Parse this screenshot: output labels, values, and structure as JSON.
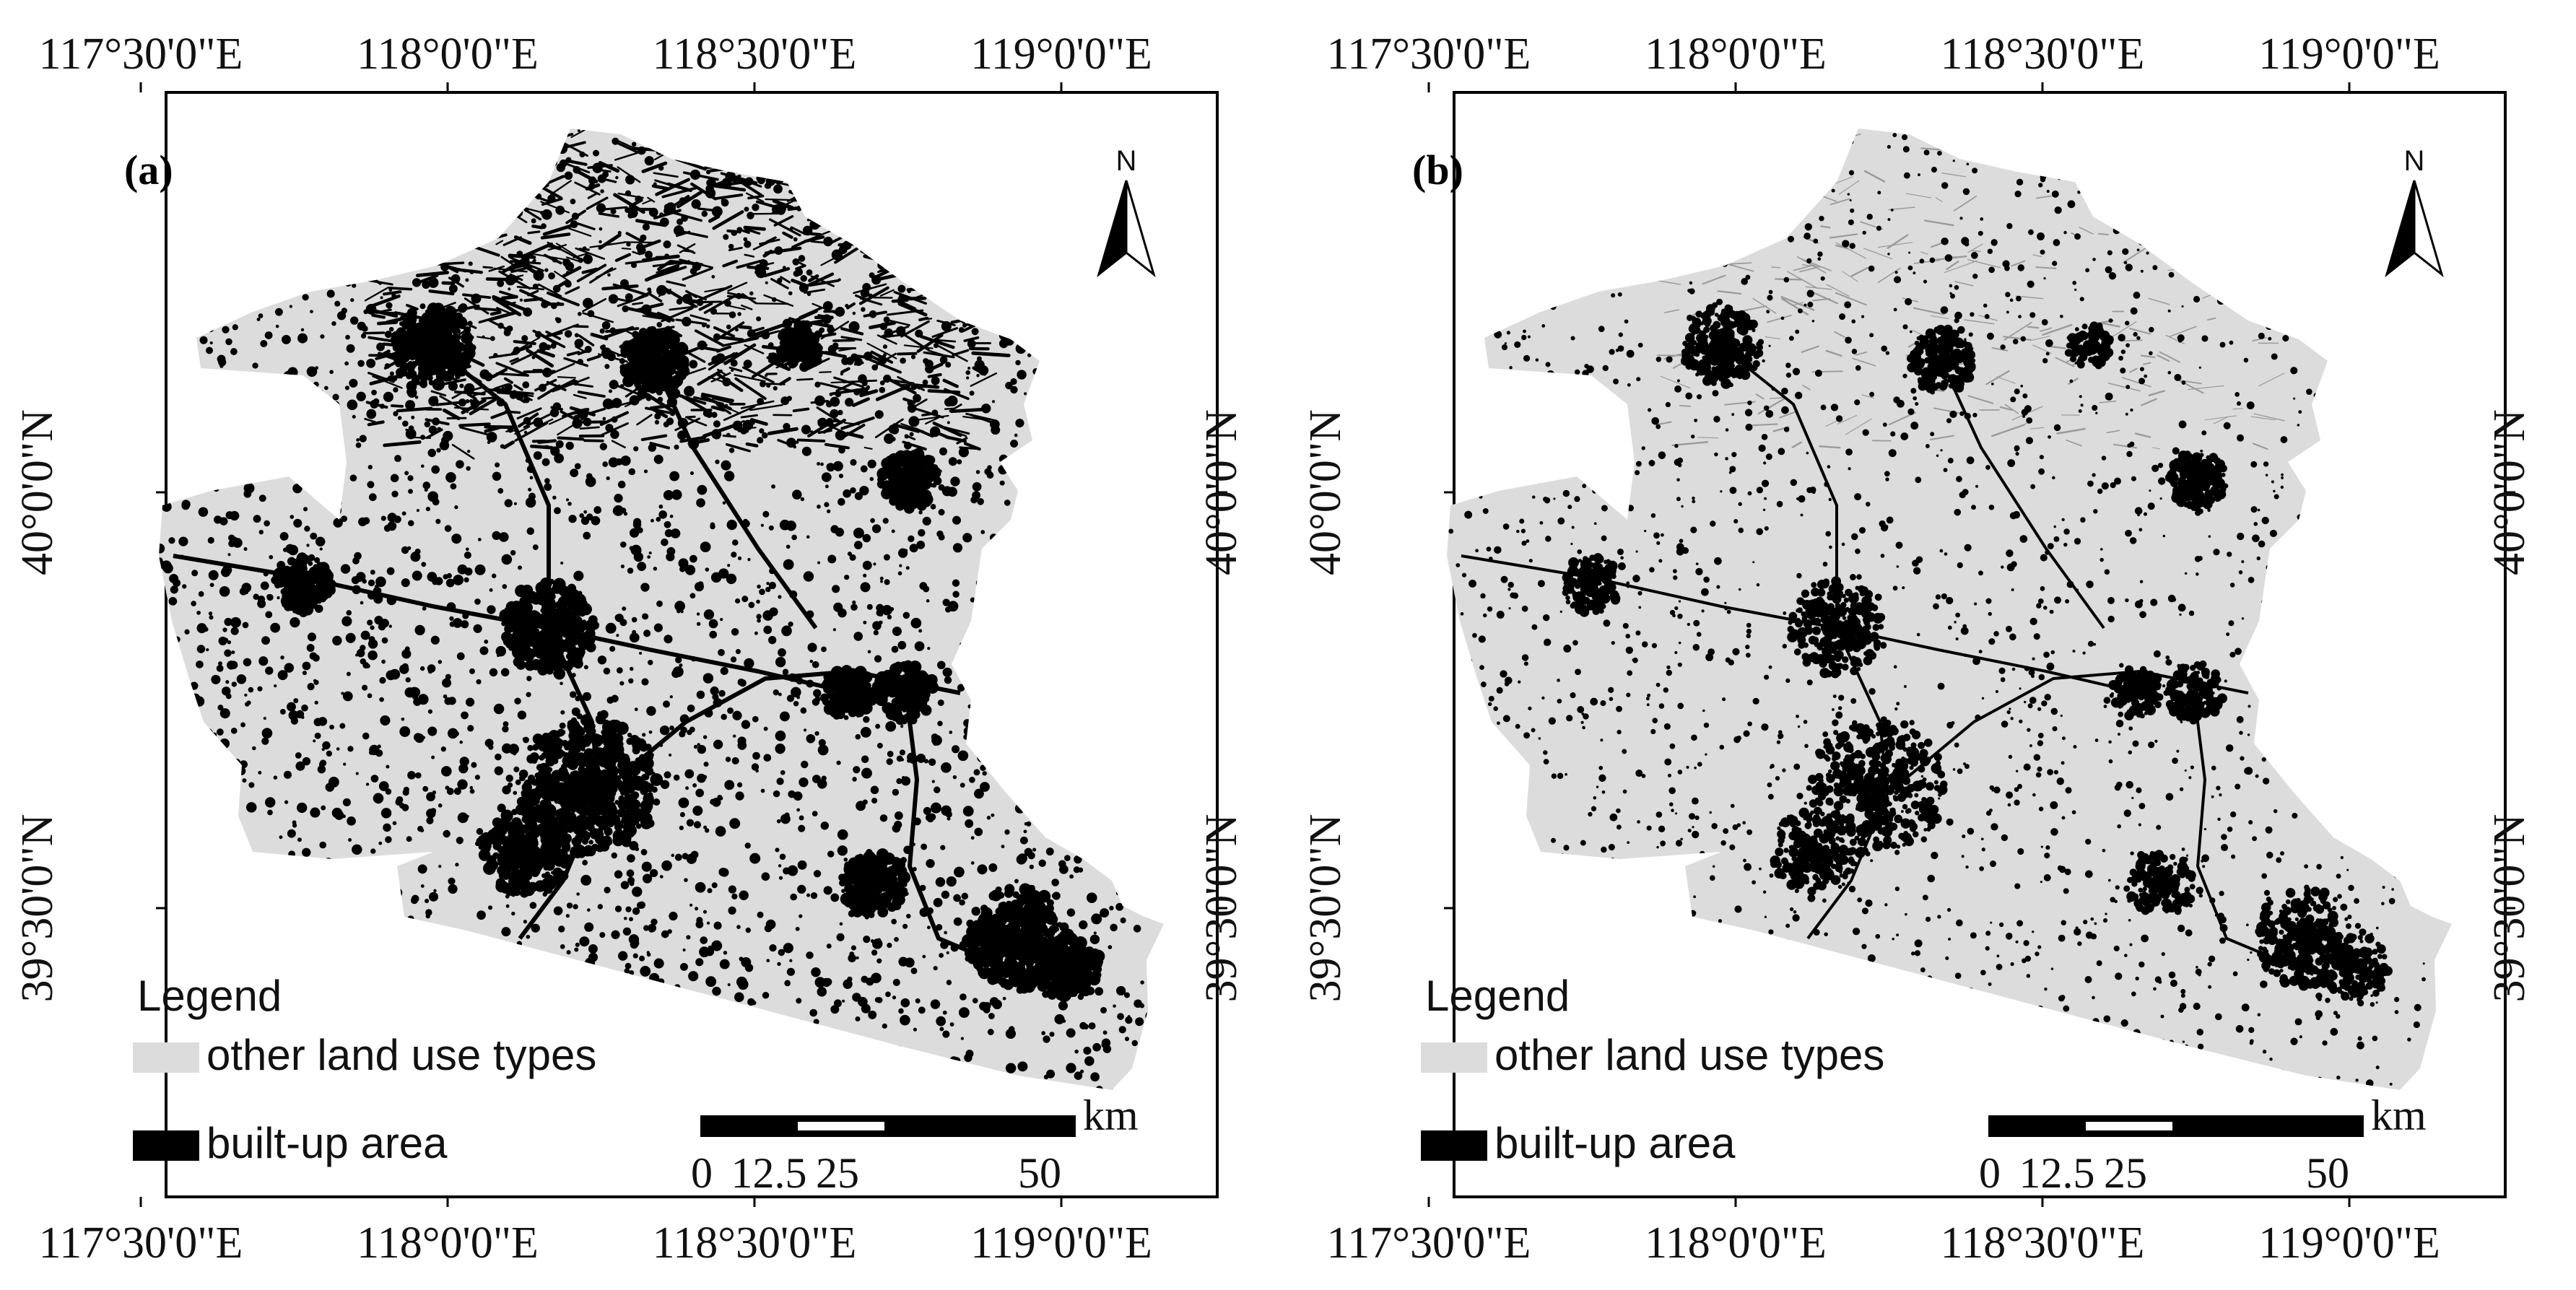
{
  "figure": {
    "colors": {
      "other_land": "#dcdcdc",
      "built_up": "#000000",
      "frame": "#000000",
      "background": "#ffffff"
    },
    "panels": [
      {
        "label": "(a)",
        "top_ticks": [
          "117°30'0\"E",
          "118°0'0\"E",
          "118°30'0\"E",
          "119°0'0\"E"
        ],
        "bottom_ticks": [
          "117°30'0\"E",
          "118°0'0\"E",
          "118°30'0\"E",
          "119°0'0\"E"
        ],
        "side_ticks": [
          "40°0'0\"N",
          "39°30'0\"N"
        ],
        "north_label": "N",
        "north_icon": "north-arrow-icon",
        "legend": {
          "title": "Legend",
          "items": [
            {
              "label": "other land use types",
              "color": "#dcdcdc"
            },
            {
              "label": "built-up area",
              "color": "#000000"
            }
          ]
        },
        "scale_bar": {
          "unit": "km",
          "ticks": [
            "0",
            "12.5",
            "25",
            "50"
          ]
        },
        "texture": "dense"
      },
      {
        "label": "(b)",
        "top_ticks": [
          "117°30'0\"E",
          "118°0'0\"E",
          "118°30'0\"E",
          "119°0'0\"E"
        ],
        "bottom_ticks": [
          "117°30'0\"E",
          "118°0'0\"E",
          "118°30'0\"E",
          "119°0'0\"E"
        ],
        "side_ticks": [
          "40°0'0\"N",
          "39°30'0\"N"
        ],
        "north_label": "N",
        "north_icon": "north-arrow-icon",
        "legend": {
          "title": "Legend",
          "items": [
            {
              "label": "other land use types",
              "color": "#dcdcdc"
            },
            {
              "label": "built-up area",
              "color": "#000000"
            }
          ]
        },
        "scale_bar": {
          "unit": "km",
          "ticks": [
            "0",
            "12.5",
            "25",
            "50"
          ]
        },
        "texture": "sparse"
      }
    ]
  }
}
